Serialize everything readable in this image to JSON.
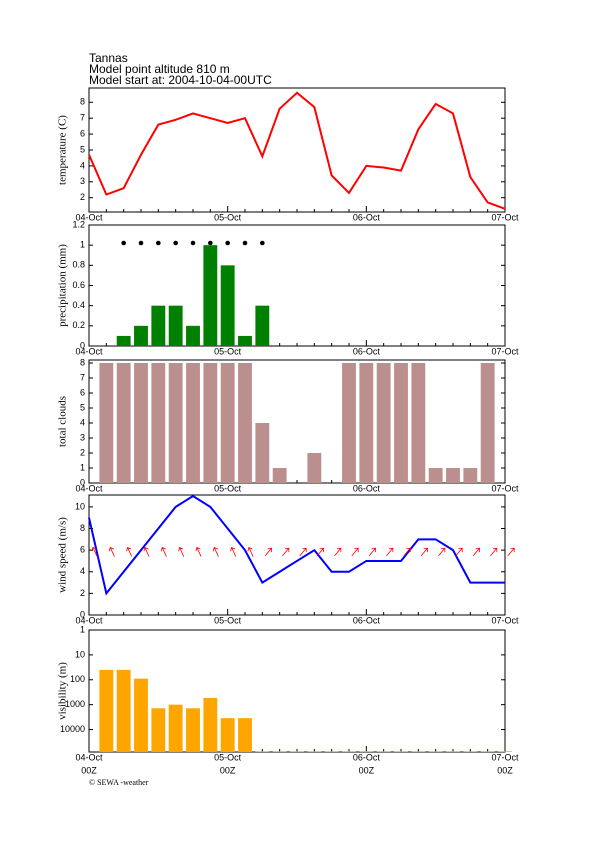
{
  "header": {
    "station": "Tannas",
    "altitude": "Model point altitude  810 m",
    "start": "Model start at: 2004-10-04-00UTC"
  },
  "credit": "© SEWA -weather",
  "chart_data": [
    {
      "type": "line",
      "ylabel": "temperature (C)",
      "color": "#ff0000",
      "categories": [
        "04-Oct",
        null,
        null,
        null,
        null,
        null,
        null,
        null,
        "05-Oct",
        null,
        null,
        null,
        null,
        null,
        null,
        null,
        "06-Oct",
        null,
        null,
        null,
        null,
        null,
        null,
        null,
        "07-Oct"
      ],
      "values": [
        4.7,
        2.2,
        2.6,
        4.7,
        6.6,
        6.9,
        7.3,
        7.0,
        6.7,
        7.0,
        4.6,
        7.6,
        8.6,
        7.7,
        3.4,
        2.3,
        4.0,
        3.9,
        3.7,
        6.3,
        7.9,
        7.3,
        3.3,
        1.7,
        1.3
      ],
      "ylim": [
        1.1,
        8.9
      ],
      "yticks": [
        2,
        3,
        4,
        5,
        6,
        7,
        8
      ]
    },
    {
      "type": "bar",
      "ylabel": "precipitation (mm)",
      "color": "#008000",
      "categories": [
        "04-Oct",
        null,
        null,
        null,
        null,
        null,
        null,
        null,
        "05-Oct",
        null,
        null,
        null,
        null,
        null,
        null,
        null,
        "06-Oct",
        null,
        null,
        null,
        null,
        null,
        null,
        null,
        "07-Oct"
      ],
      "values": [
        0,
        0,
        0.1,
        0.2,
        0.4,
        0.4,
        0.2,
        1.0,
        0.8,
        0.1,
        0.4,
        0,
        0,
        0,
        0,
        0,
        0,
        0,
        0,
        0,
        0,
        0,
        0,
        0,
        0
      ],
      "ylim": [
        0,
        1.2
      ],
      "yticks": [
        0,
        0.2,
        0.4,
        0.6,
        0.8,
        1,
        1.2
      ]
    },
    {
      "type": "bar",
      "ylabel": "total clouds",
      "color": "#bc8f8f",
      "categories": [
        "04-Oct",
        null,
        null,
        null,
        null,
        null,
        null,
        null,
        "05-Oct",
        null,
        null,
        null,
        null,
        null,
        null,
        null,
        "06-Oct",
        null,
        null,
        null,
        null,
        null,
        null,
        null,
        "07-Oct"
      ],
      "values": [
        0,
        8,
        8,
        8,
        8,
        8,
        8,
        8,
        8,
        8,
        4,
        1,
        0,
        2,
        0,
        8,
        8,
        8,
        8,
        8,
        1,
        1,
        1,
        8,
        0
      ],
      "ylim": [
        0,
        8.2
      ],
      "yticks": [
        0,
        1,
        2,
        3,
        4,
        5,
        6,
        7,
        8
      ]
    },
    {
      "type": "line",
      "ylabel": "wind speed (m/s)",
      "color": "#0000ff",
      "categories": [
        "04-Oct",
        null,
        null,
        null,
        null,
        null,
        null,
        null,
        "05-Oct",
        null,
        null,
        null,
        null,
        null,
        null,
        null,
        "06-Oct",
        null,
        null,
        null,
        null,
        null,
        null,
        null,
        "07-Oct"
      ],
      "values": [
        9,
        2,
        4,
        6,
        8,
        10,
        11,
        10,
        8,
        6,
        3,
        4,
        5,
        6,
        4,
        4,
        5,
        5,
        5,
        7,
        7,
        6,
        3,
        3,
        3
      ],
      "ylim": [
        0,
        11.1
      ],
      "yticks": [
        0,
        2,
        4,
        6,
        8,
        10
      ]
    },
    {
      "type": "bar",
      "ylabel": "visibility (m)",
      "color": "#ffa500",
      "log_scale": true,
      "y_inverted": true,
      "categories": [
        "04-Oct",
        null,
        null,
        null,
        null,
        null,
        null,
        null,
        "05-Oct",
        null,
        null,
        null,
        null,
        null,
        null,
        null,
        "06-Oct",
        null,
        null,
        null,
        null,
        null,
        null,
        null,
        "07-Oct"
      ],
      "values": [
        null,
        40,
        40,
        90,
        1400,
        1000,
        1400,
        540,
        3500,
        3500,
        75000,
        75000,
        75000,
        75000,
        75000,
        75000,
        75000,
        75000,
        75000,
        75000,
        75000,
        75000,
        75000,
        75000,
        75000
      ],
      "ylim": [
        1,
        80000
      ],
      "yticks": [
        1,
        10,
        100,
        1000,
        10000
      ],
      "sublabels": [
        "00Z",
        "00Z",
        "00Z",
        "00Z"
      ]
    }
  ]
}
